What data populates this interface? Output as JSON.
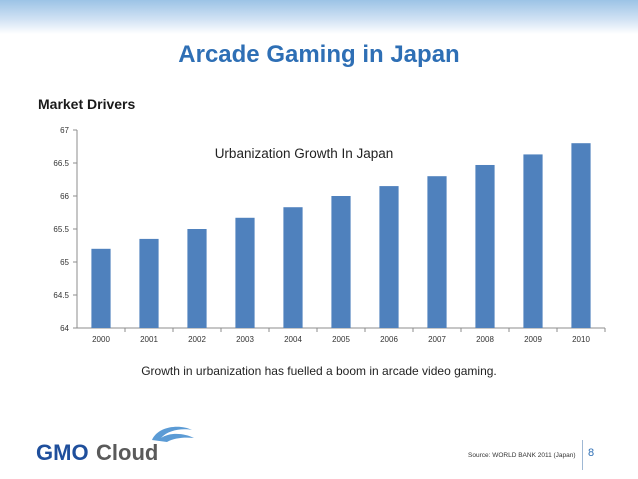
{
  "slide": {
    "title": "Arcade Gaming in Japan",
    "section": "Market Drivers",
    "caption": "Growth in urbanization has fuelled a boom in arcade video gaming.",
    "source": "Source: WORLD BANK 2011 (Japan)",
    "page_number": "8",
    "logo": {
      "part1": "GMO",
      "part2": "Cloud",
      "colors": {
        "gmo": "#1f4f9c",
        "cloud": "#5a5a5a",
        "swirl": "#5b9bd5"
      }
    }
  },
  "chart_data": {
    "type": "bar",
    "title": "Urbanization Growth In Japan",
    "categories": [
      "2000",
      "2001",
      "2002",
      "2003",
      "2004",
      "2005",
      "2006",
      "2007",
      "2008",
      "2009",
      "2010"
    ],
    "values": [
      65.2,
      65.35,
      65.5,
      65.67,
      65.83,
      66.0,
      66.15,
      66.3,
      66.47,
      66.63,
      66.8
    ],
    "ylim": [
      64,
      67
    ],
    "yticks": [
      "64",
      "64.5",
      "65",
      "65.5",
      "66",
      "66.5",
      "67"
    ],
    "xlabel": "",
    "ylabel": "",
    "bar_color": "#4f81bd",
    "grid": false,
    "legend": "none"
  }
}
